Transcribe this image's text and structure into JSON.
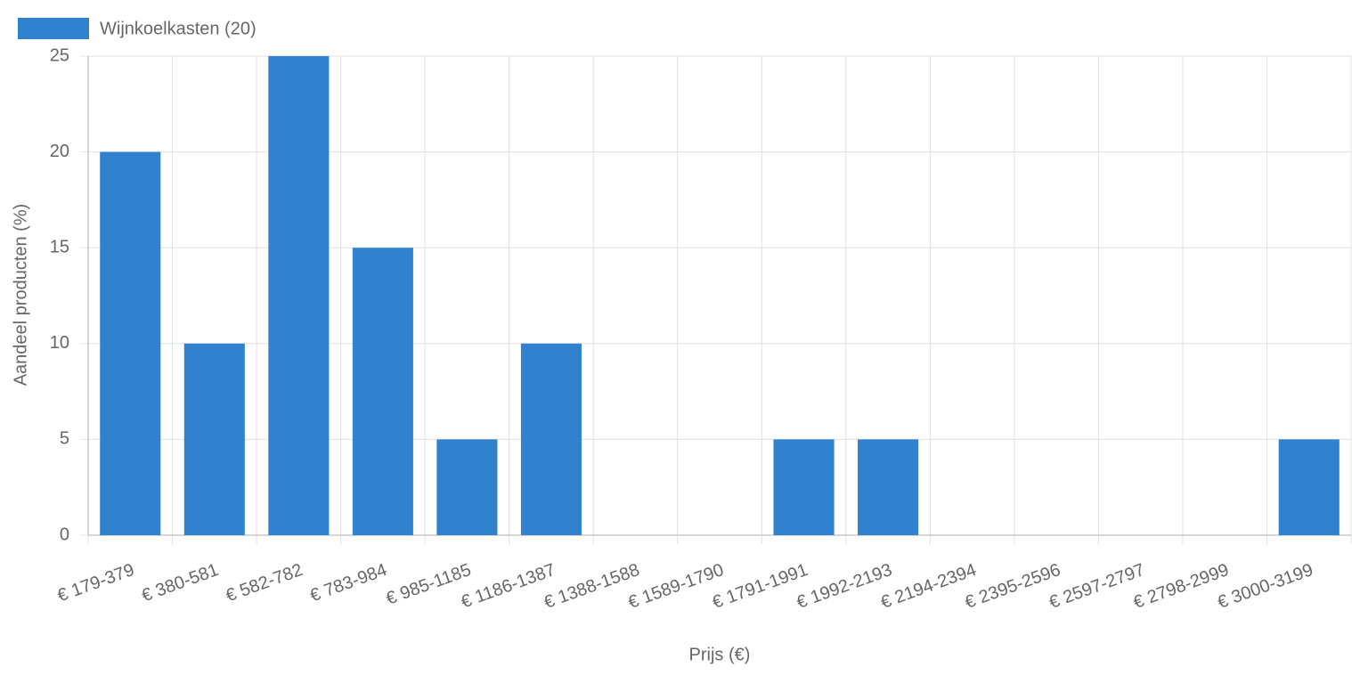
{
  "chart_data": {
    "type": "bar",
    "categories": [
      "€ 179-379",
      "€ 380-581",
      "€ 582-782",
      "€ 783-984",
      "€ 985-1185",
      "€ 1186-1387",
      "€ 1388-1588",
      "€ 1589-1790",
      "€ 1791-1991",
      "€ 1992-2193",
      "€ 2194-2394",
      "€ 2395-2596",
      "€ 2597-2797",
      "€ 2798-2999",
      "€ 3000-3199"
    ],
    "series": [
      {
        "name": "Wijnkoelkasten (20)",
        "color": "#3182ce",
        "values": [
          20,
          10,
          25,
          15,
          5,
          10,
          0,
          0,
          5,
          5,
          0,
          0,
          0,
          0,
          5
        ]
      }
    ],
    "x_label": "Prijs (€)",
    "y_label": "Aandeel producten (%)",
    "ylim": [
      0,
      25
    ],
    "yticks": [
      0,
      5,
      10,
      15,
      20,
      25
    ],
    "grid": true,
    "legend": "top-left"
  }
}
